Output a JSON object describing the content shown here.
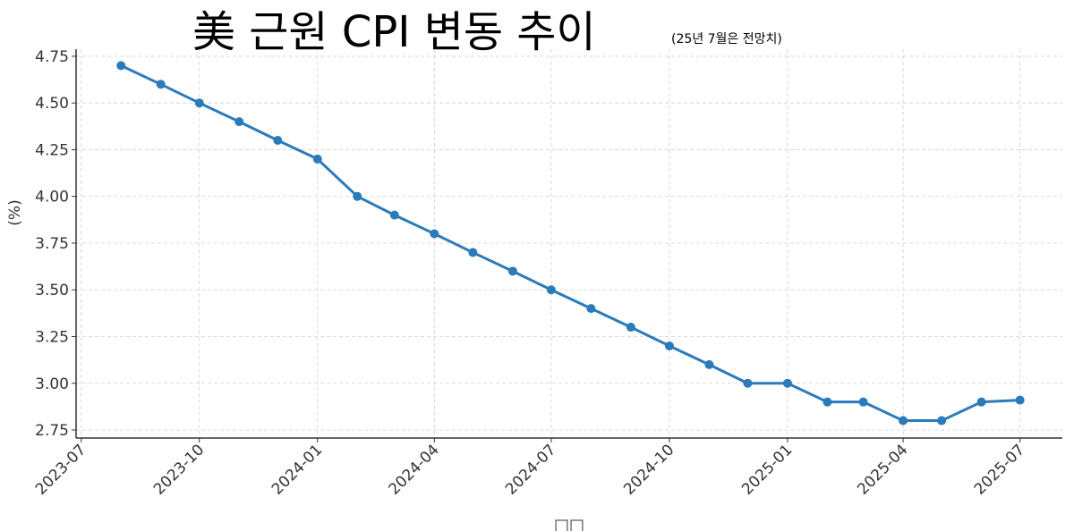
{
  "chart_data": {
    "type": "line",
    "title": "美 근원 CPI 변동 추이",
    "subtitle": "(25년 7월은 전망치)",
    "xlabel": "□□",
    "ylabel": "(%)",
    "x": [
      "2023-08",
      "2023-09",
      "2023-10",
      "2023-11",
      "2023-12",
      "2024-01",
      "2024-02",
      "2024-03",
      "2024-04",
      "2024-05",
      "2024-06",
      "2024-07",
      "2024-08",
      "2024-09",
      "2024-10",
      "2024-11",
      "2024-12",
      "2025-01",
      "2025-02",
      "2025-03",
      "2025-04",
      "2025-05",
      "2025-06",
      "2025-07"
    ],
    "series": [
      {
        "values": [
          4.7,
          4.6,
          4.5,
          4.4,
          4.3,
          4.2,
          4.0,
          3.9,
          3.8,
          3.7,
          3.6,
          3.5,
          3.4,
          3.3,
          3.2,
          3.1,
          3.0,
          3.0,
          2.9,
          2.9,
          2.8,
          2.8,
          2.9,
          2.91
        ]
      }
    ],
    "xticks": [
      "2023-07",
      "2023-10",
      "2024-01",
      "2024-04",
      "2024-07",
      "2024-10",
      "2025-01",
      "2025-04",
      "2025-07"
    ],
    "yticks": [
      "2.75",
      "3.00",
      "3.25",
      "3.50",
      "3.75",
      "4.00",
      "4.25",
      "4.50",
      "4.75"
    ],
    "ylim": [
      2.707,
      4.788
    ],
    "xlim": [
      "2023-06-27",
      "2025-08-03"
    ],
    "grid": true,
    "line_color": "#2b7bba"
  }
}
